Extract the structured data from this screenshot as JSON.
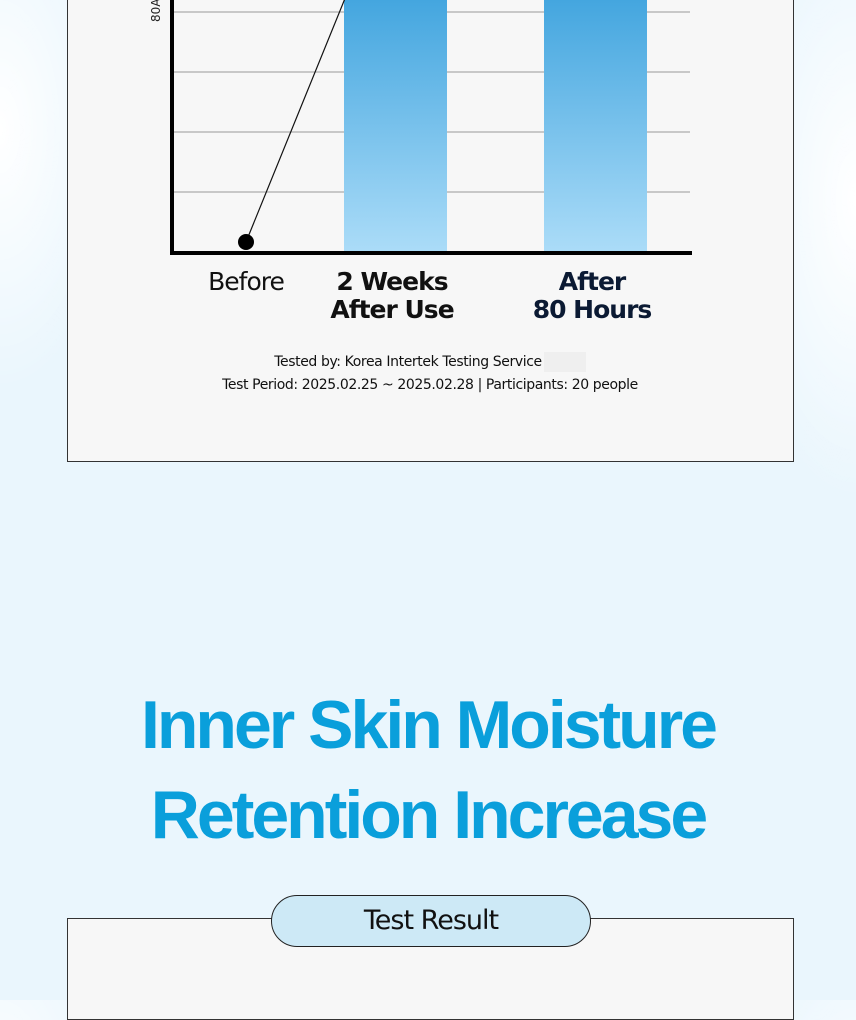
{
  "chart": {
    "axis_label": "80A",
    "categories": [
      [
        "Before"
      ],
      [
        "2 Weeks",
        "After Use"
      ],
      [
        "After",
        "80 Hours"
      ]
    ]
  },
  "notes": [
    "Tested by: Korea Intertek Testing Service",
    "Test Period: 2025.02.25 ~ 2025.02.28 | Participants: 20 people"
  ],
  "heading": [
    "Inner Skin Moisture",
    "Retention Increase"
  ],
  "badge": "Test Result"
}
